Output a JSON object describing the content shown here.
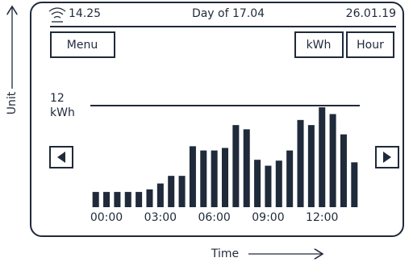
{
  "status": {
    "time": "14.25",
    "title": "Day of 17.04",
    "date": "26.01.19"
  },
  "buttons": {
    "menu": "Menu",
    "unit": "kWh",
    "period": "Hour"
  },
  "chart_data": {
    "type": "bar",
    "color": "#1f2a3a",
    "x_label": "Time",
    "y_label": "Unit",
    "y_unit": "kWh",
    "categories": [
      null,
      "00:00",
      null,
      null,
      null,
      null,
      "03:00",
      null,
      null,
      null,
      null,
      "06:00",
      null,
      null,
      null,
      null,
      "09:00",
      null,
      null,
      null,
      null,
      "12:00",
      null,
      null,
      null
    ],
    "values": [
      1.8,
      1.8,
      1.8,
      1.8,
      1.8,
      2.1,
      2.8,
      3.7,
      3.7,
      7.2,
      6.7,
      6.7,
      7.0,
      9.7,
      9.2,
      5.6,
      4.9,
      5.5,
      6.7,
      10.3,
      9.7,
      11.8,
      11.0,
      8.6,
      5.3
    ],
    "ylim": [
      0,
      12
    ],
    "yticks": [
      12
    ],
    "grid": true
  }
}
